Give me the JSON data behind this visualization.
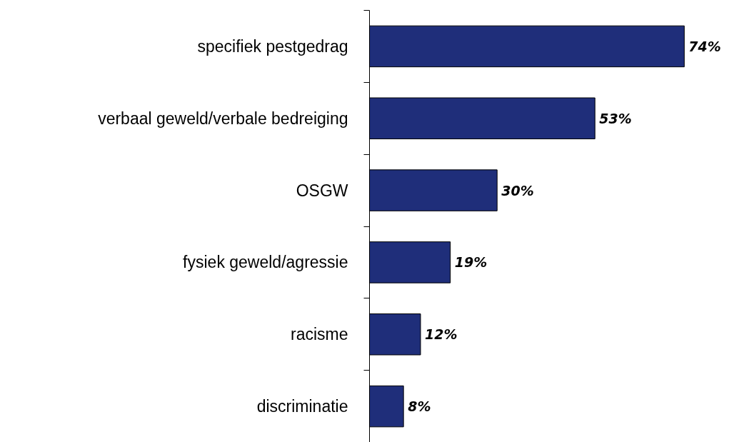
{
  "chart_data": {
    "type": "bar",
    "orientation": "horizontal",
    "categories": [
      "specifiek pestgedrag",
      "verbaal geweld/verbale bedreiging",
      "OSGW",
      "fysiek geweld/agressie",
      "racisme",
      "discriminatie"
    ],
    "values": [
      74,
      53,
      30,
      19,
      12,
      8
    ],
    "value_labels": [
      "74%",
      "53%",
      "30%",
      "19%",
      "12%",
      "8%"
    ],
    "color": "#1f2e7a"
  }
}
